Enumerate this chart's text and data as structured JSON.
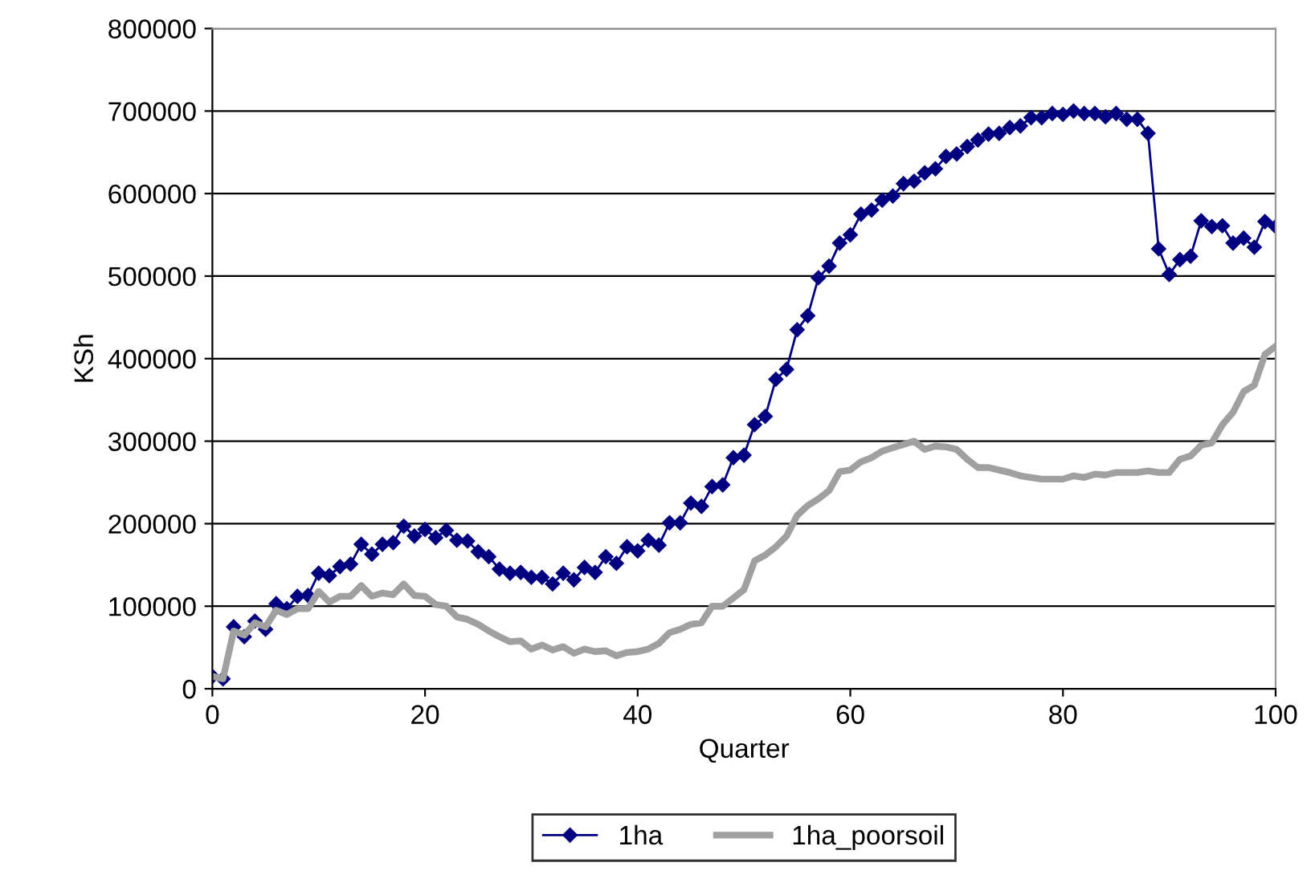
{
  "chart_data": {
    "type": "line",
    "xlabel": "Quarter",
    "ylabel": "KSh",
    "xlim": [
      0,
      100
    ],
    "xticks": [
      0,
      20,
      40,
      60,
      80,
      100
    ],
    "ylim": [
      0,
      800000
    ],
    "yticks": [
      0,
      100000,
      200000,
      300000,
      400000,
      500000,
      600000,
      700000,
      800000
    ],
    "grid": "y",
    "legend": "bottom",
    "series": [
      {
        "name": "1ha",
        "color": "#000080",
        "marker": "diamond",
        "line_style": "solid",
        "x": [
          0,
          1,
          2,
          3,
          4,
          5,
          6,
          7,
          8,
          9,
          10,
          11,
          12,
          13,
          14,
          15,
          16,
          17,
          18,
          19,
          20,
          21,
          22,
          23,
          24,
          25,
          26,
          27,
          28,
          29,
          30,
          31,
          32,
          33,
          34,
          35,
          36,
          37,
          38,
          39,
          40,
          41,
          42,
          43,
          44,
          45,
          46,
          47,
          48,
          49,
          50,
          51,
          52,
          53,
          54,
          55,
          56,
          57,
          58,
          59,
          60,
          61,
          62,
          63,
          64,
          65,
          66,
          67,
          68,
          69,
          70,
          71,
          72,
          73,
          74,
          75,
          76,
          77,
          78,
          79,
          80,
          81,
          82,
          83,
          84,
          85,
          86,
          87,
          88,
          89,
          90,
          91,
          92,
          93,
          94,
          95,
          96,
          97,
          98,
          99,
          100
        ],
        "values": [
          15000,
          12000,
          75000,
          63000,
          82000,
          72000,
          103000,
          97000,
          112000,
          113000,
          140000,
          137000,
          148000,
          151000,
          175000,
          163000,
          175000,
          177000,
          197000,
          185000,
          193000,
          183000,
          192000,
          180000,
          179000,
          166000,
          160000,
          145000,
          140000,
          141000,
          135000,
          135000,
          127000,
          140000,
          132000,
          147000,
          141000,
          160000,
          152000,
          172000,
          167000,
          180000,
          174000,
          201000,
          201000,
          225000,
          221000,
          245000,
          247000,
          280000,
          283000,
          320000,
          330000,
          375000,
          387000,
          435000,
          452000,
          498000,
          512000,
          540000,
          550000,
          575000,
          580000,
          592000,
          597000,
          612000,
          615000,
          625000,
          630000,
          645000,
          648000,
          657000,
          665000,
          672000,
          673000,
          680000,
          682000,
          692000,
          692000,
          697000,
          696000,
          700000,
          697000,
          697000,
          693000,
          697000,
          690000,
          690000,
          673000,
          533000,
          502000,
          520000,
          524000,
          567000,
          560000,
          561000,
          540000,
          546000,
          535000,
          566000,
          560000
        ]
      },
      {
        "name": "1ha_poorsoil",
        "color": "#a0a0a0",
        "marker": "none",
        "line_style": "solid",
        "x": [
          0,
          1,
          2,
          3,
          4,
          5,
          6,
          7,
          8,
          9,
          10,
          11,
          12,
          13,
          14,
          15,
          16,
          17,
          18,
          19,
          20,
          21,
          22,
          23,
          24,
          25,
          26,
          27,
          28,
          29,
          30,
          31,
          32,
          33,
          34,
          35,
          36,
          37,
          38,
          39,
          40,
          41,
          42,
          43,
          44,
          45,
          46,
          47,
          48,
          49,
          50,
          51,
          52,
          53,
          54,
          55,
          56,
          57,
          58,
          59,
          60,
          61,
          62,
          63,
          64,
          65,
          66,
          67,
          68,
          69,
          70,
          71,
          72,
          73,
          74,
          75,
          76,
          77,
          78,
          79,
          80,
          81,
          82,
          83,
          84,
          85,
          86,
          87,
          88,
          89,
          90,
          91,
          92,
          93,
          94,
          95,
          96,
          97,
          98,
          99,
          100
        ],
        "values": [
          15000,
          12000,
          70000,
          65000,
          80000,
          75000,
          95000,
          90000,
          97000,
          97000,
          118000,
          105000,
          112000,
          112000,
          125000,
          112000,
          116000,
          114000,
          127000,
          113000,
          112000,
          102000,
          100000,
          87000,
          84000,
          78000,
          70000,
          63000,
          57000,
          58000,
          48000,
          53000,
          47000,
          51000,
          43000,
          48000,
          45000,
          46000,
          40000,
          44000,
          45000,
          48000,
          55000,
          68000,
          72000,
          78000,
          80000,
          100000,
          100000,
          110000,
          120000,
          155000,
          162000,
          172000,
          185000,
          210000,
          222000,
          230000,
          240000,
          263000,
          265000,
          275000,
          280000,
          288000,
          292000,
          296000,
          300000,
          290000,
          294000,
          293000,
          290000,
          278000,
          268000,
          268000,
          265000,
          262000,
          258000,
          256000,
          254000,
          254000,
          254000,
          258000,
          256000,
          260000,
          259000,
          262000,
          262000,
          262000,
          264000,
          262000,
          262000,
          278000,
          282000,
          295000,
          298000,
          320000,
          335000,
          360000,
          368000,
          405000,
          415000
        ]
      }
    ]
  }
}
